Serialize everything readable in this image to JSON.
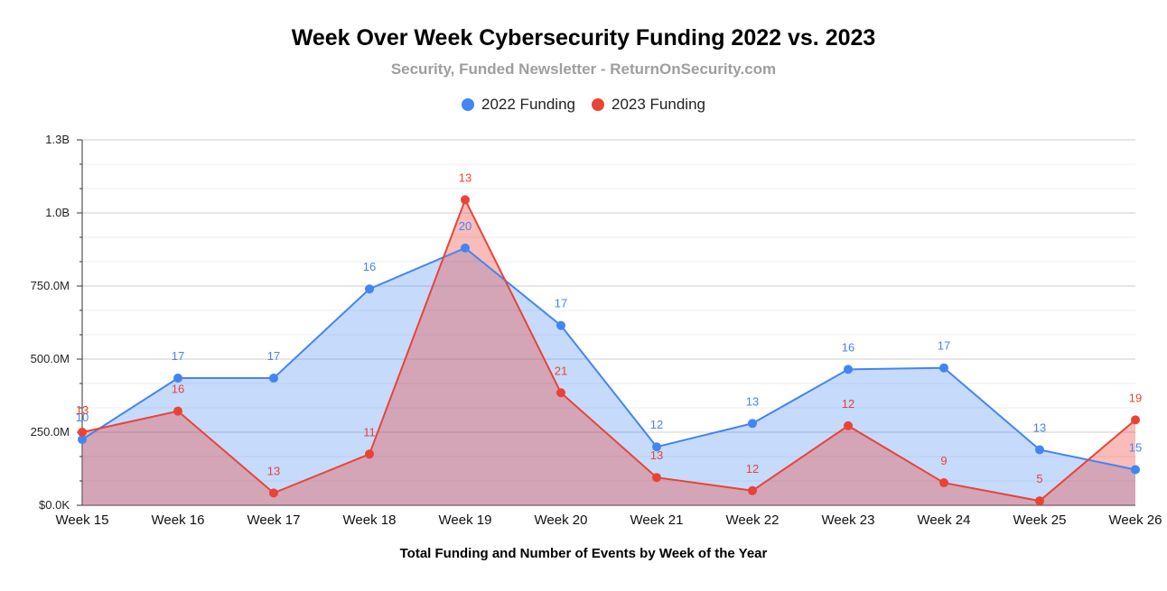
{
  "chart_data": {
    "type": "area",
    "title": "Week Over Week Cybersecurity Funding 2022 vs. 2023",
    "subtitle": "Security, Funded Newsletter - ReturnOnSecurity.com",
    "xlabel": "Total Funding and Number of Events by Week of the Year",
    "ylabel": "",
    "categories": [
      "Week 15",
      "Week 16",
      "Week 17",
      "Week 18",
      "Week 19",
      "Week 20",
      "Week 21",
      "Week 22",
      "Week 23",
      "Week 24",
      "Week 25",
      "Week 26"
    ],
    "ylim": [
      0,
      1250000000
    ],
    "yticks": [
      {
        "value": 0,
        "label": "$0.0K"
      },
      {
        "value": 250000000,
        "label": "250.0M"
      },
      {
        "value": 500000000,
        "label": "500.0M"
      },
      {
        "value": 750000000,
        "label": "750.0M"
      },
      {
        "value": 1000000000,
        "label": "1.0B"
      },
      {
        "value": 1250000000,
        "label": "1.3B"
      }
    ],
    "grid": true,
    "legend_position": "top",
    "series": [
      {
        "name": "2022 Funding",
        "color": "#4285f4",
        "fill": "#c6dafc",
        "values": [
          225000000,
          435000000,
          435000000,
          740000000,
          880000000,
          615000000,
          200000000,
          280000000,
          465000000,
          470000000,
          190000000,
          122000000
        ],
        "labels": [
          "10",
          "17",
          "17",
          "16",
          "20",
          "17",
          "12",
          "13",
          "16",
          "17",
          "13",
          "15"
        ]
      },
      {
        "name": "2023 Funding",
        "color": "#ea4335",
        "fill": "#f4b8b2",
        "values": [
          250000000,
          322000000,
          42000000,
          175000000,
          1045000000,
          385000000,
          95000000,
          50000000,
          272000000,
          77000000,
          15000000,
          292000000
        ],
        "labels": [
          "13",
          "16",
          "13",
          "11",
          "13",
          "21",
          "13",
          "12",
          "12",
          "9",
          "5",
          "19"
        ]
      }
    ]
  }
}
